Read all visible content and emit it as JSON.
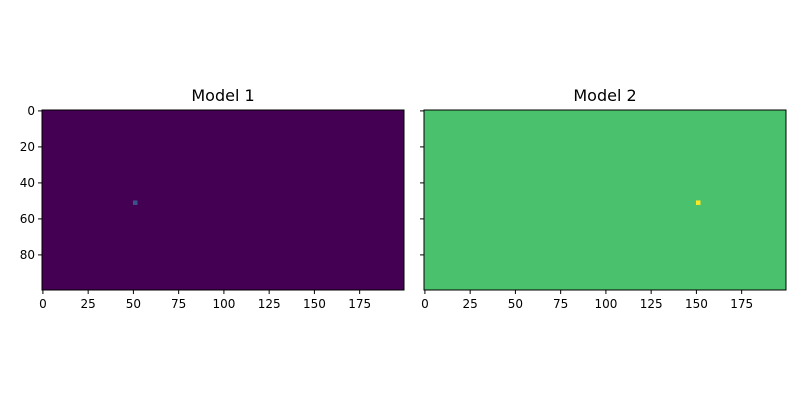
{
  "chart_data": [
    {
      "type": "heatmap",
      "title": "Model 1",
      "xlabel": "",
      "ylabel": "",
      "xlim": [
        -0.5,
        199.5
      ],
      "ylim": [
        99.5,
        -0.5
      ],
      "xticks": [
        0,
        25,
        50,
        75,
        100,
        125,
        150,
        175
      ],
      "yticks": [
        0,
        20,
        40,
        60,
        80
      ],
      "show_ytick_labels": true,
      "colormap": "viridis",
      "background_color": "#440154",
      "highlights": [
        {
          "x": 51,
          "y": 51,
          "color": "#3b528b"
        }
      ],
      "grid": false
    },
    {
      "type": "heatmap",
      "title": "Model 2",
      "xlabel": "",
      "ylabel": "",
      "xlim": [
        -0.5,
        199.5
      ],
      "ylim": [
        99.5,
        -0.5
      ],
      "xticks": [
        0,
        25,
        50,
        75,
        100,
        125,
        150,
        175
      ],
      "yticks": [
        0,
        20,
        40,
        60,
        80
      ],
      "show_ytick_labels": false,
      "colormap": "viridis",
      "background_color": "#4ac16d",
      "highlights": [
        {
          "x": 151,
          "y": 51,
          "color": "#fde725"
        }
      ],
      "grid": false
    }
  ]
}
